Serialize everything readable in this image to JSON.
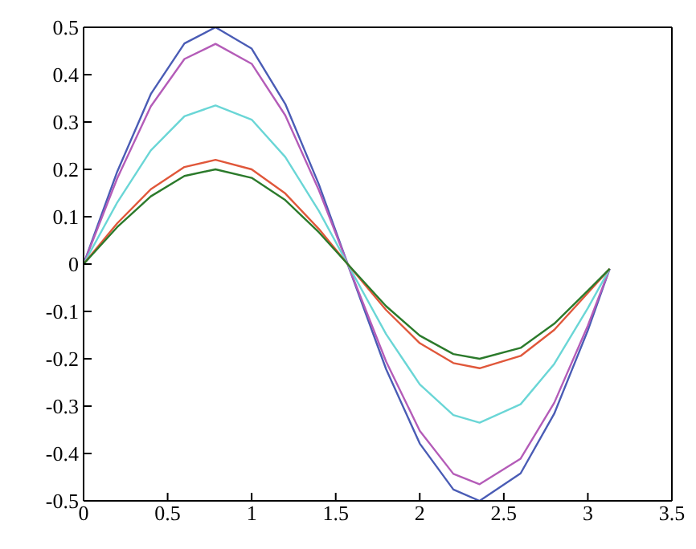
{
  "chart_data": {
    "type": "line",
    "x": [
      0,
      0.2,
      0.4,
      0.6,
      0.785,
      1.0,
      1.2,
      1.4,
      1.571,
      1.8,
      2.0,
      2.2,
      2.356,
      2.6,
      2.8,
      3.0,
      3.13
    ],
    "series": [
      {
        "color": "#4a5cb5",
        "values": [
          0,
          0.195,
          0.359,
          0.466,
          0.5,
          0.455,
          0.338,
          0.168,
          0,
          -0.222,
          -0.379,
          -0.476,
          -0.5,
          -0.442,
          -0.316,
          -0.14,
          -0.01
        ]
      },
      {
        "color": "#b45cb8",
        "values": [
          0,
          0.181,
          0.333,
          0.433,
          0.465,
          0.423,
          0.314,
          0.156,
          0,
          -0.206,
          -0.352,
          -0.443,
          -0.465,
          -0.411,
          -0.293,
          -0.13,
          -0.01
        ]
      },
      {
        "color": "#6ad6d6",
        "values": [
          0,
          0.13,
          0.24,
          0.312,
          0.335,
          0.305,
          0.226,
          0.112,
          0,
          -0.148,
          -0.254,
          -0.319,
          -0.335,
          -0.296,
          -0.211,
          -0.093,
          -0.01
        ]
      },
      {
        "color": "#e0573a",
        "values": [
          0,
          0.086,
          0.158,
          0.205,
          0.22,
          0.2,
          0.149,
          0.074,
          0,
          -0.097,
          -0.167,
          -0.209,
          -0.22,
          -0.194,
          -0.139,
          -0.061,
          -0.01
        ]
      },
      {
        "color": "#2b7a2b",
        "values": [
          0,
          0.078,
          0.143,
          0.186,
          0.2,
          0.182,
          0.135,
          0.067,
          0,
          -0.089,
          -0.151,
          -0.19,
          -0.2,
          -0.177,
          -0.126,
          -0.056,
          -0.01
        ]
      }
    ],
    "xlim": [
      0,
      3.5
    ],
    "xticks": [
      0,
      0.5,
      1,
      1.5,
      2,
      2.5,
      3,
      3.5
    ],
    "ylim": [
      -0.5,
      0.5
    ],
    "yticks": [
      -0.5,
      -0.4,
      -0.3,
      -0.2,
      -0.1,
      0,
      0.1,
      0.2,
      0.3,
      0.4,
      0.5
    ],
    "grid": false,
    "legend": false,
    "marker": "none",
    "line_style": "solid"
  }
}
